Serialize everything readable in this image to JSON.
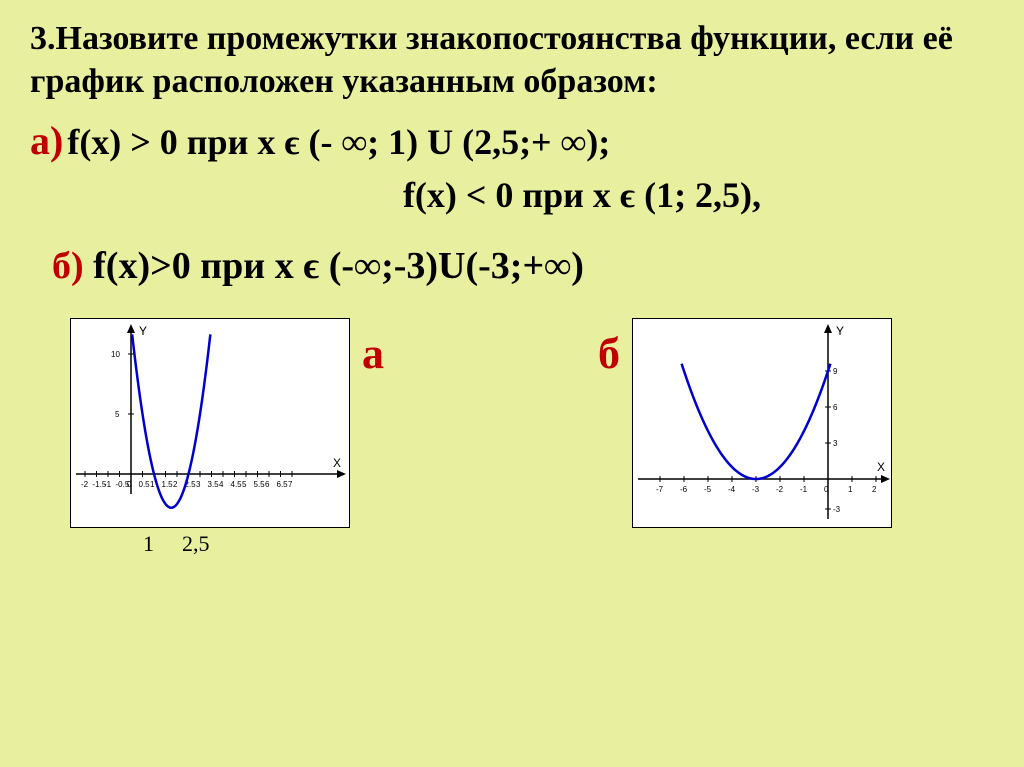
{
  "background_color": "#e8f0a0",
  "title": "3.Назовите промежутки знакопостоянства функции, если её график расположен указанным образом:",
  "lineA": {
    "marker": "а)",
    "text": "f(x) > 0 при х ϵ (- ∞; 1) U  (2,5;+ ∞);"
  },
  "lineA2": "f(x) < 0 при х ϵ (1; 2,5),",
  "lineB": {
    "marker": "б)",
    "text": " f(x)>0 при х ϵ (-∞;-3)U(-3;+∞)"
  },
  "chartA": {
    "label": "а",
    "curve_color": "#0000cc",
    "axis_label_x": "X",
    "axis_label_y": "Y",
    "x_ticks": [
      "-2",
      "-1.5",
      "-1",
      "-0.5",
      "0",
      "0.5",
      "1",
      "1.5",
      "2",
      "2.5",
      "3",
      "3.5",
      "4",
      "4.5",
      "5",
      "5.5",
      "6",
      "6.5",
      "7"
    ],
    "y_ticks": [
      "5",
      "10"
    ],
    "bottom_labels": [
      "1",
      "2,5"
    ],
    "parabola": {
      "vertex_x": 1.75,
      "vertex_y": -1.0,
      "roots": [
        1,
        2.5
      ]
    }
  },
  "chartB": {
    "label": "б",
    "curve_color": "#0000cc",
    "axis_label_x": "X",
    "axis_label_y": "Y",
    "x_ticks": [
      "-7",
      "-6",
      "-5",
      "-4",
      "-3",
      "-2",
      "-1",
      "0",
      "1",
      "2"
    ],
    "y_ticks": [
      "-3",
      "3",
      "6",
      "9"
    ],
    "parabola": {
      "vertex_x": -3,
      "vertex_y": 0
    }
  }
}
